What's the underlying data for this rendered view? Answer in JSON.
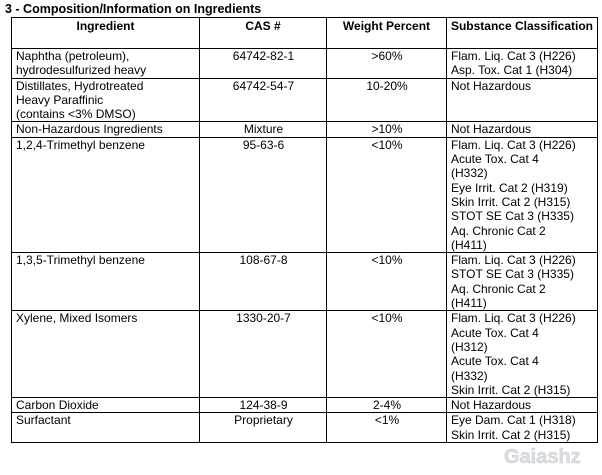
{
  "section_heading": "3 - Composition/Information on Ingredients",
  "columns": [
    "Ingredient",
    "CAS #",
    "Weight Percent",
    "Substance Classification"
  ],
  "rows": [
    {
      "ingredient": [
        "Naphtha (petroleum),",
        "hydrodesulfurized heavy"
      ],
      "cas": "64742-82-1",
      "weight": ">60%",
      "classification": [
        "Flam. Liq. Cat 3 (H226)",
        "Asp. Tox. Cat 1 (H304)"
      ]
    },
    {
      "ingredient": [
        "Distillates, Hydrotreated",
        "Heavy Paraffinic",
        "(contains <3% DMSO)"
      ],
      "cas": "64742-54-7",
      "weight": "10-20%",
      "classification": [
        "Not Hazardous"
      ]
    },
    {
      "ingredient": [
        "Non-Hazardous Ingredients"
      ],
      "cas": "Mixture",
      "weight": ">10%",
      "classification": [
        "Not Hazardous"
      ]
    },
    {
      "ingredient": [
        "1,2,4-Trimethyl benzene"
      ],
      "cas": "95-63-6",
      "weight": "<10%",
      "classification": [
        "Flam. Liq. Cat 3 (H226)",
        "Acute Tox. Cat 4",
        "(H332)",
        "Eye Irrit. Cat 2 (H319)",
        "Skin Irrit. Cat 2 (H315)",
        "STOT SE Cat 3 (H335)",
        "Aq. Chronic Cat 2",
        "(H411)"
      ]
    },
    {
      "ingredient": [
        "1,3,5-Trimethyl benzene"
      ],
      "cas": "108-67-8",
      "weight": "<10%",
      "classification": [
        "Flam. Liq. Cat 3 (H226)",
        "STOT SE Cat 3 (H335)",
        "Aq. Chronic Cat 2",
        "(H411)"
      ]
    },
    {
      "ingredient": [
        "Xylene, Mixed Isomers"
      ],
      "cas": "1330-20-7",
      "weight": "<10%",
      "classification": [
        "Flam. Liq. Cat 3 (H226)",
        "Acute Tox. Cat 4",
        "(H312)",
        "Acute Tox. Cat 4",
        "(H332)",
        "Skin Irrit. Cat 2 (H315)"
      ]
    },
    {
      "ingredient": [
        "Carbon Dioxide"
      ],
      "cas": "124-38-9",
      "weight": "2-4%",
      "classification": [
        "Not Hazardous"
      ]
    },
    {
      "ingredient": [
        "Surfactant"
      ],
      "cas": "Proprietary",
      "weight": "<1%",
      "classification": [
        "Eye Dam. Cat 1 (H318)",
        "Skin Irrit. Cat 2 (H315)"
      ]
    }
  ],
  "watermark": {
    "text": "Gaiashz",
    "color": "#9aa3ad"
  }
}
